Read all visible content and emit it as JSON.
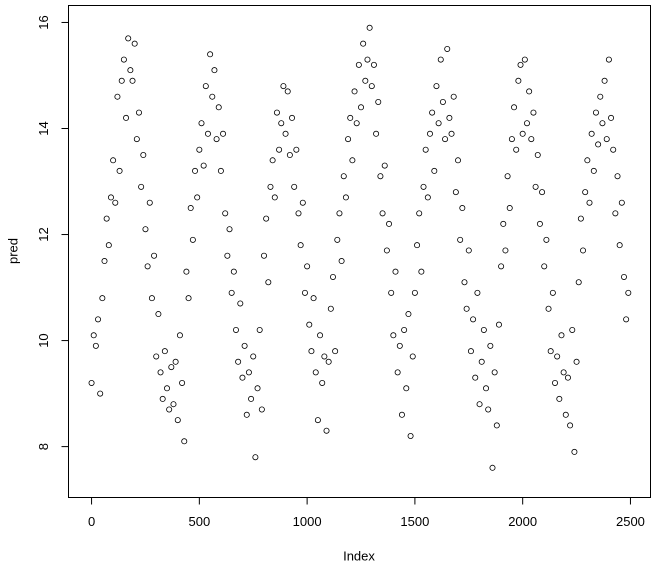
{
  "chart_data": {
    "type": "scatter",
    "xlabel": "Index",
    "ylabel": "pred",
    "color": "#000000",
    "x": [
      0,
      10,
      20,
      30,
      40,
      50,
      60,
      70,
      80,
      90,
      100,
      110,
      120,
      130,
      140,
      150,
      160,
      170,
      180,
      190,
      200,
      210,
      220,
      230,
      240,
      250,
      260,
      270,
      280,
      290,
      300,
      310,
      320,
      330,
      340,
      350,
      360,
      370,
      380,
      390,
      400,
      410,
      420,
      430,
      440,
      450,
      460,
      470,
      480,
      490,
      500,
      510,
      520,
      530,
      540,
      550,
      560,
      570,
      580,
      590,
      600,
      610,
      620,
      630,
      640,
      650,
      660,
      670,
      680,
      690,
      700,
      710,
      720,
      730,
      740,
      750,
      760,
      770,
      780,
      790,
      800,
      810,
      820,
      830,
      840,
      850,
      860,
      870,
      880,
      890,
      900,
      910,
      920,
      930,
      940,
      950,
      960,
      970,
      980,
      990,
      1000,
      1010,
      1020,
      1030,
      1040,
      1050,
      1060,
      1070,
      1080,
      1090,
      1100,
      1110,
      1120,
      1130,
      1140,
      1150,
      1160,
      1170,
      1180,
      1190,
      1200,
      1210,
      1220,
      1230,
      1240,
      1250,
      1260,
      1270,
      1280,
      1290,
      1300,
      1310,
      1320,
      1330,
      1340,
      1350,
      1360,
      1370,
      1380,
      1390,
      1400,
      1410,
      1420,
      1430,
      1440,
      1450,
      1460,
      1470,
      1480,
      1490,
      1500,
      1510,
      1520,
      1530,
      1540,
      1550,
      1560,
      1570,
      1580,
      1590,
      1600,
      1610,
      1620,
      1630,
      1640,
      1650,
      1660,
      1670,
      1680,
      1690,
      1700,
      1710,
      1720,
      1730,
      1740,
      1750,
      1760,
      1770,
      1780,
      1790,
      1800,
      1810,
      1820,
      1830,
      1840,
      1850,
      1860,
      1870,
      1880,
      1890,
      1900,
      1910,
      1920,
      1930,
      1940,
      1950,
      1960,
      1970,
      1980,
      1990,
      2000,
      2010,
      2020,
      2030,
      2040,
      2050,
      2060,
      2070,
      2080,
      2090,
      2100,
      2110,
      2120,
      2130,
      2140,
      2150,
      2160,
      2170,
      2180,
      2190,
      2200,
      2210,
      2220,
      2230,
      2240,
      2250,
      2260,
      2270,
      2280,
      2290,
      2300,
      2310,
      2320,
      2330,
      2340,
      2350,
      2360,
      2370,
      2380,
      2390,
      2400,
      2410,
      2420,
      2430,
      2440,
      2450,
      2460,
      2470,
      2480,
      2490
    ],
    "values": [
      9.2,
      10.1,
      9.9,
      10.4,
      9.0,
      10.8,
      11.5,
      12.3,
      11.8,
      12.7,
      13.4,
      12.6,
      14.6,
      13.2,
      14.9,
      15.3,
      14.2,
      15.7,
      15.1,
      14.9,
      15.6,
      13.8,
      14.3,
      12.9,
      13.5,
      12.1,
      11.4,
      12.6,
      10.8,
      11.6,
      9.7,
      10.5,
      9.4,
      8.9,
      9.8,
      9.1,
      8.7,
      9.5,
      8.8,
      9.6,
      8.5,
      10.1,
      9.2,
      8.1,
      11.3,
      10.8,
      12.5,
      11.9,
      13.2,
      12.7,
      13.6,
      14.1,
      13.3,
      14.8,
      13.9,
      15.4,
      14.6,
      15.1,
      13.8,
      14.4,
      13.2,
      13.9,
      12.4,
      11.6,
      12.1,
      10.9,
      11.3,
      10.2,
      9.6,
      10.7,
      9.3,
      9.9,
      8.6,
      9.4,
      8.9,
      9.7,
      7.8,
      9.1,
      10.2,
      8.7,
      11.6,
      12.3,
      11.1,
      12.9,
      13.4,
      12.7,
      14.3,
      13.6,
      14.1,
      14.8,
      13.9,
      14.7,
      13.5,
      14.2,
      12.9,
      13.6,
      12.4,
      11.8,
      12.6,
      10.9,
      11.4,
      10.3,
      9.8,
      10.8,
      9.4,
      8.5,
      10.1,
      9.2,
      9.7,
      8.3,
      9.6,
      10.6,
      11.2,
      9.8,
      11.9,
      12.4,
      11.5,
      13.1,
      12.7,
      13.8,
      14.2,
      13.4,
      14.7,
      14.1,
      15.2,
      14.4,
      15.6,
      14.9,
      15.3,
      15.9,
      14.8,
      15.2,
      13.9,
      14.5,
      13.1,
      12.4,
      13.3,
      11.7,
      12.2,
      10.9,
      10.1,
      11.3,
      9.4,
      9.9,
      8.6,
      10.2,
      9.1,
      10.5,
      8.2,
      9.7,
      10.9,
      11.8,
      12.4,
      11.3,
      12.9,
      13.6,
      12.7,
      13.9,
      14.3,
      13.2,
      14.8,
      14.1,
      15.3,
      14.5,
      13.8,
      15.5,
      14.2,
      13.9,
      14.6,
      12.8,
      13.4,
      11.9,
      12.5,
      11.1,
      10.6,
      11.7,
      9.8,
      10.4,
      9.3,
      10.9,
      8.8,
      9.6,
      10.2,
      9.1,
      8.7,
      9.9,
      7.6,
      9.4,
      8.4,
      10.3,
      11.4,
      12.2,
      11.7,
      13.1,
      12.5,
      13.8,
      14.4,
      13.6,
      14.9,
      15.2,
      13.9,
      15.3,
      14.1,
      14.7,
      13.8,
      14.3,
      12.9,
      13.5,
      12.2,
      12.8,
      11.4,
      11.9,
      10.6,
      9.8,
      10.9,
      9.2,
      9.7,
      8.9,
      10.1,
      9.4,
      8.6,
      9.3,
      8.4,
      10.2,
      7.9,
      9.6,
      11.1,
      12.3,
      11.7,
      12.8,
      13.4,
      12.6,
      13.9,
      13.2,
      14.3,
      13.7,
      14.6,
      14.1,
      14.9,
      13.8,
      15.3,
      14.2,
      13.6,
      12.4,
      13.1,
      11.8,
      12.6,
      11.2,
      10.4,
      10.9
    ],
    "xlim": [
      -107,
      2593
    ],
    "ylim": [
      7.04,
      16.32
    ],
    "xticks": [
      0,
      500,
      1000,
      1500,
      2000,
      2500
    ],
    "yticks": [
      8,
      10,
      12,
      14,
      16
    ]
  }
}
